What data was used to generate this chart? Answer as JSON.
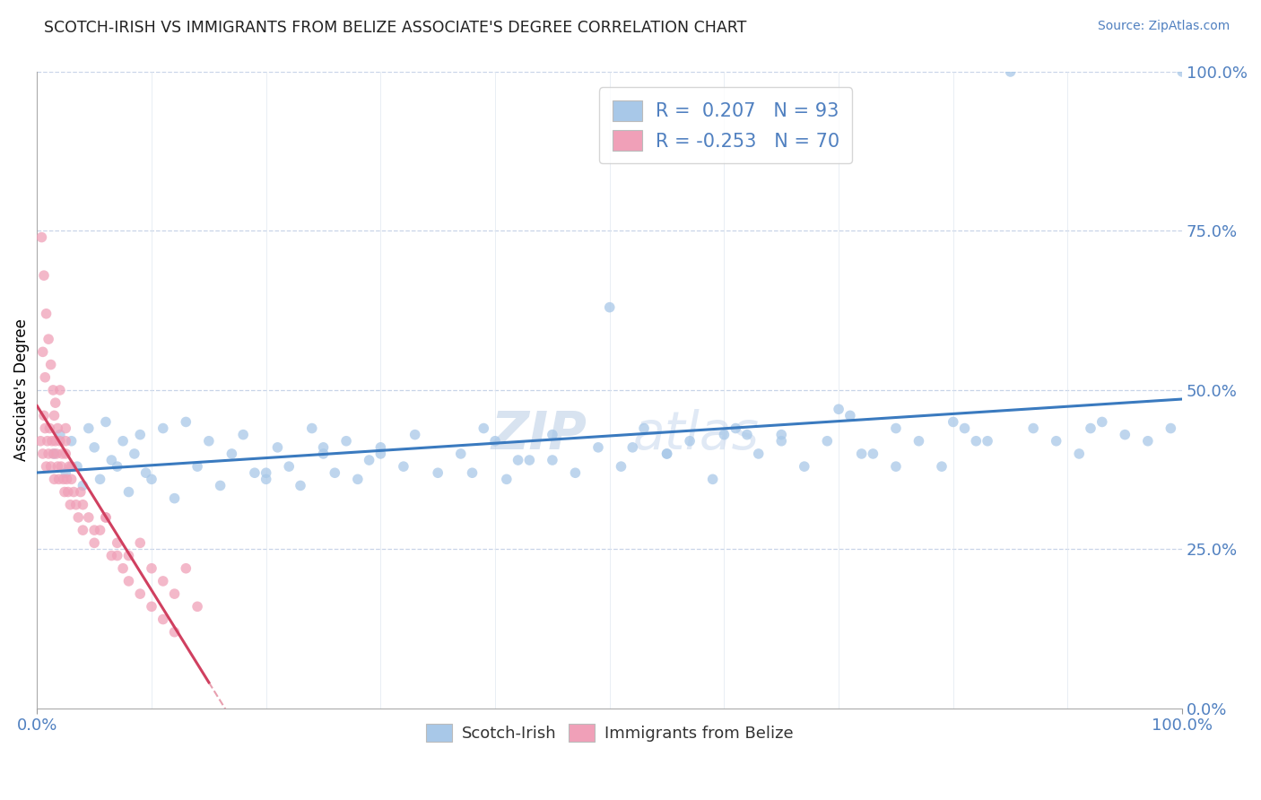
{
  "title": "SCOTCH-IRISH VS IMMIGRANTS FROM BELIZE ASSOCIATE'S DEGREE CORRELATION CHART",
  "source": "Source: ZipAtlas.com",
  "ylabel": "Associate's Degree",
  "legend_label1": "Scotch-Irish",
  "legend_label2": "Immigrants from Belize",
  "r1": 0.207,
  "n1": 93,
  "r2": -0.253,
  "n2": 70,
  "color_blue": "#a8c8e8",
  "color_pink": "#f0a0b8",
  "color_line_blue": "#3a7abf",
  "color_line_pink": "#d04060",
  "color_text_blue": "#5080c0",
  "watermark_color": "#ccd8ee",
  "grid_color": "#c8d4e8",
  "scotch_x": [
    1.5,
    2.0,
    2.5,
    3.0,
    3.5,
    4.0,
    4.5,
    5.0,
    5.5,
    6.0,
    6.5,
    7.0,
    7.5,
    8.0,
    8.5,
    9.0,
    9.5,
    10.0,
    11.0,
    12.0,
    13.0,
    14.0,
    15.0,
    16.0,
    17.0,
    18.0,
    19.0,
    20.0,
    21.0,
    22.0,
    23.0,
    24.0,
    25.0,
    26.0,
    27.0,
    28.0,
    29.0,
    30.0,
    32.0,
    33.0,
    35.0,
    37.0,
    39.0,
    41.0,
    43.0,
    45.0,
    47.0,
    49.0,
    51.0,
    53.0,
    55.0,
    57.0,
    59.0,
    61.0,
    63.0,
    65.0,
    67.0,
    69.0,
    71.0,
    73.0,
    75.0,
    77.0,
    79.0,
    81.0,
    83.0,
    85.0,
    87.0,
    89.0,
    91.0,
    93.0,
    95.0,
    97.0,
    99.0,
    100.0,
    50.0,
    70.0,
    80.0,
    60.0,
    40.0,
    30.0,
    25.0,
    20.0,
    45.0,
    55.0,
    65.0,
    75.0,
    38.0,
    42.0,
    52.0,
    62.0,
    72.0,
    82.0,
    92.0
  ],
  "scotch_y": [
    40.0,
    43.0,
    37.0,
    42.0,
    38.0,
    35.0,
    44.0,
    41.0,
    36.0,
    45.0,
    39.0,
    38.0,
    42.0,
    34.0,
    40.0,
    43.0,
    37.0,
    36.0,
    44.0,
    33.0,
    45.0,
    38.0,
    42.0,
    35.0,
    40.0,
    43.0,
    37.0,
    36.0,
    41.0,
    38.0,
    35.0,
    44.0,
    40.0,
    37.0,
    42.0,
    36.0,
    39.0,
    41.0,
    38.0,
    43.0,
    37.0,
    40.0,
    44.0,
    36.0,
    39.0,
    43.0,
    37.0,
    41.0,
    38.0,
    44.0,
    40.0,
    42.0,
    36.0,
    44.0,
    40.0,
    43.0,
    38.0,
    42.0,
    46.0,
    40.0,
    44.0,
    42.0,
    38.0,
    44.0,
    42.0,
    100.0,
    44.0,
    42.0,
    40.0,
    45.0,
    43.0,
    42.0,
    44.0,
    100.0,
    63.0,
    47.0,
    45.0,
    43.0,
    42.0,
    40.0,
    41.0,
    37.0,
    39.0,
    40.0,
    42.0,
    38.0,
    37.0,
    39.0,
    41.0,
    43.0,
    40.0,
    42.0,
    44.0
  ],
  "belize_x": [
    0.3,
    0.5,
    0.6,
    0.7,
    0.8,
    0.9,
    1.0,
    1.1,
    1.2,
    1.3,
    1.4,
    1.5,
    1.6,
    1.7,
    1.8,
    1.9,
    2.0,
    2.1,
    2.2,
    2.3,
    2.4,
    2.5,
    2.6,
    2.7,
    2.8,
    2.9,
    3.0,
    3.2,
    3.4,
    3.6,
    3.8,
    4.0,
    4.5,
    5.0,
    5.5,
    6.0,
    6.5,
    7.0,
    7.5,
    8.0,
    9.0,
    10.0,
    11.0,
    12.0,
    13.0,
    14.0,
    0.4,
    0.6,
    0.8,
    1.0,
    1.2,
    1.4,
    1.6,
    1.8,
    2.0,
    2.5,
    3.0,
    4.0,
    5.0,
    6.0,
    7.0,
    8.0,
    9.0,
    10.0,
    11.0,
    12.0,
    0.5,
    0.7,
    1.5,
    2.5
  ],
  "belize_y": [
    42.0,
    40.0,
    46.0,
    44.0,
    38.0,
    42.0,
    40.0,
    44.0,
    38.0,
    42.0,
    40.0,
    36.0,
    42.0,
    40.0,
    38.0,
    36.0,
    42.0,
    38.0,
    40.0,
    36.0,
    34.0,
    40.0,
    36.0,
    34.0,
    38.0,
    32.0,
    36.0,
    34.0,
    32.0,
    30.0,
    34.0,
    28.0,
    30.0,
    26.0,
    28.0,
    30.0,
    24.0,
    26.0,
    22.0,
    24.0,
    26.0,
    22.0,
    20.0,
    18.0,
    22.0,
    16.0,
    74.0,
    68.0,
    62.0,
    58.0,
    54.0,
    50.0,
    48.0,
    44.0,
    50.0,
    42.0,
    38.0,
    32.0,
    28.0,
    30.0,
    24.0,
    20.0,
    18.0,
    16.0,
    14.0,
    12.0,
    56.0,
    52.0,
    46.0,
    44.0
  ]
}
